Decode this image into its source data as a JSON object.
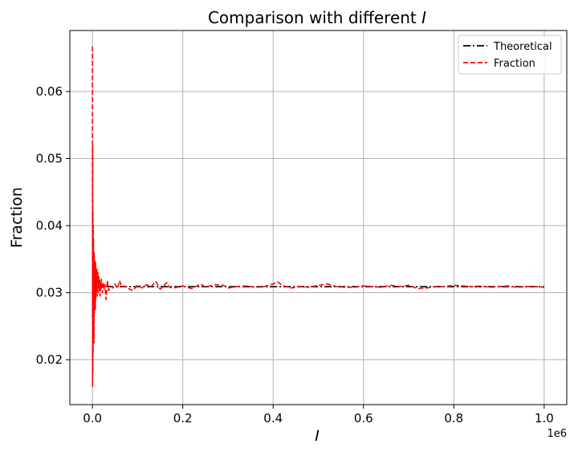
{
  "chart_data": {
    "type": "line",
    "title": "Comparison with different ",
    "title_var": "I",
    "xlabel": "I",
    "ylabel": "Fraction",
    "x_offset_text": "1e6",
    "xlim": [
      -0.05,
      1.05
    ],
    "ylim": [
      0.0133,
      0.0691
    ],
    "x_ticks": [
      0.0,
      0.2,
      0.4,
      0.6,
      0.8,
      1.0
    ],
    "x_tick_labels": [
      "0.0",
      "0.2",
      "0.4",
      "0.6",
      "0.8",
      "1.0"
    ],
    "y_ticks": [
      0.02,
      0.03,
      0.04,
      0.05,
      0.06
    ],
    "y_tick_labels": [
      "0.02",
      "0.03",
      "0.04",
      "0.05",
      "0.06"
    ],
    "grid": true,
    "legend_position": "top-right",
    "colors": {
      "theoretical": "#000000",
      "fraction": "#ff0000",
      "grid": "#b0b0b0"
    },
    "series": [
      {
        "name": "Theoretical",
        "style": "dashdot",
        "color": "#000000",
        "x": [
          0.0,
          1.0
        ],
        "y": [
          0.0309,
          0.0309
        ]
      },
      {
        "name": "Fraction",
        "style": "dashed",
        "color": "#ff0000",
        "x": [
          0.0,
          0.0003,
          0.0006,
          0.0009,
          0.0012,
          0.0015,
          0.0018,
          0.0021,
          0.0024,
          0.0027,
          0.003,
          0.0035,
          0.004,
          0.0045,
          0.005,
          0.0055,
          0.006,
          0.0065,
          0.007,
          0.0075,
          0.008,
          0.009,
          0.01,
          0.011,
          0.012,
          0.013,
          0.014,
          0.015,
          0.016,
          0.017,
          0.018,
          0.019,
          0.02,
          0.022,
          0.024,
          0.026,
          0.028,
          0.03,
          0.033,
          0.036,
          0.04,
          0.045,
          0.05,
          0.055,
          0.06,
          0.065,
          0.07,
          0.08,
          0.09,
          0.1,
          0.11,
          0.12,
          0.13,
          0.14,
          0.145,
          0.15,
          0.16,
          0.165,
          0.17,
          0.18,
          0.2,
          0.22,
          0.24,
          0.25,
          0.27,
          0.29,
          0.3,
          0.32,
          0.34,
          0.36,
          0.38,
          0.4,
          0.41,
          0.42,
          0.44,
          0.46,
          0.48,
          0.5,
          0.52,
          0.54,
          0.56,
          0.58,
          0.6,
          0.62,
          0.64,
          0.66,
          0.68,
          0.7,
          0.72,
          0.74,
          0.76,
          0.78,
          0.8,
          0.82,
          0.84,
          0.86,
          0.88,
          0.9,
          0.92,
          0.94,
          0.96,
          0.98,
          1.0
        ],
        "y": [
          0.0667,
          0.016,
          0.052,
          0.018,
          0.042,
          0.021,
          0.04,
          0.024,
          0.038,
          0.026,
          0.034,
          0.0225,
          0.036,
          0.027,
          0.035,
          0.029,
          0.033,
          0.0275,
          0.0345,
          0.029,
          0.032,
          0.03,
          0.0335,
          0.0295,
          0.033,
          0.03,
          0.0325,
          0.0305,
          0.032,
          0.0295,
          0.0315,
          0.0305,
          0.032,
          0.03,
          0.0315,
          0.0305,
          0.0312,
          0.029,
          0.0318,
          0.0303,
          0.031,
          0.0307,
          0.0313,
          0.0306,
          0.0318,
          0.0308,
          0.031,
          0.0306,
          0.0303,
          0.0312,
          0.0307,
          0.0312,
          0.0309,
          0.0317,
          0.0311,
          0.0305,
          0.0312,
          0.0315,
          0.0308,
          0.0307,
          0.031,
          0.0306,
          0.0313,
          0.0308,
          0.0312,
          0.0311,
          0.0307,
          0.0309,
          0.031,
          0.0308,
          0.0309,
          0.0313,
          0.0316,
          0.0311,
          0.0307,
          0.0309,
          0.0308,
          0.0311,
          0.0313,
          0.0309,
          0.0308,
          0.0308,
          0.031,
          0.0309,
          0.0308,
          0.0311,
          0.0309,
          0.0311,
          0.0306,
          0.0307,
          0.0309,
          0.0309,
          0.0311,
          0.031,
          0.0309,
          0.031,
          0.0308,
          0.0309,
          0.031,
          0.0308,
          0.0309,
          0.0309,
          0.0308
        ]
      }
    ]
  }
}
